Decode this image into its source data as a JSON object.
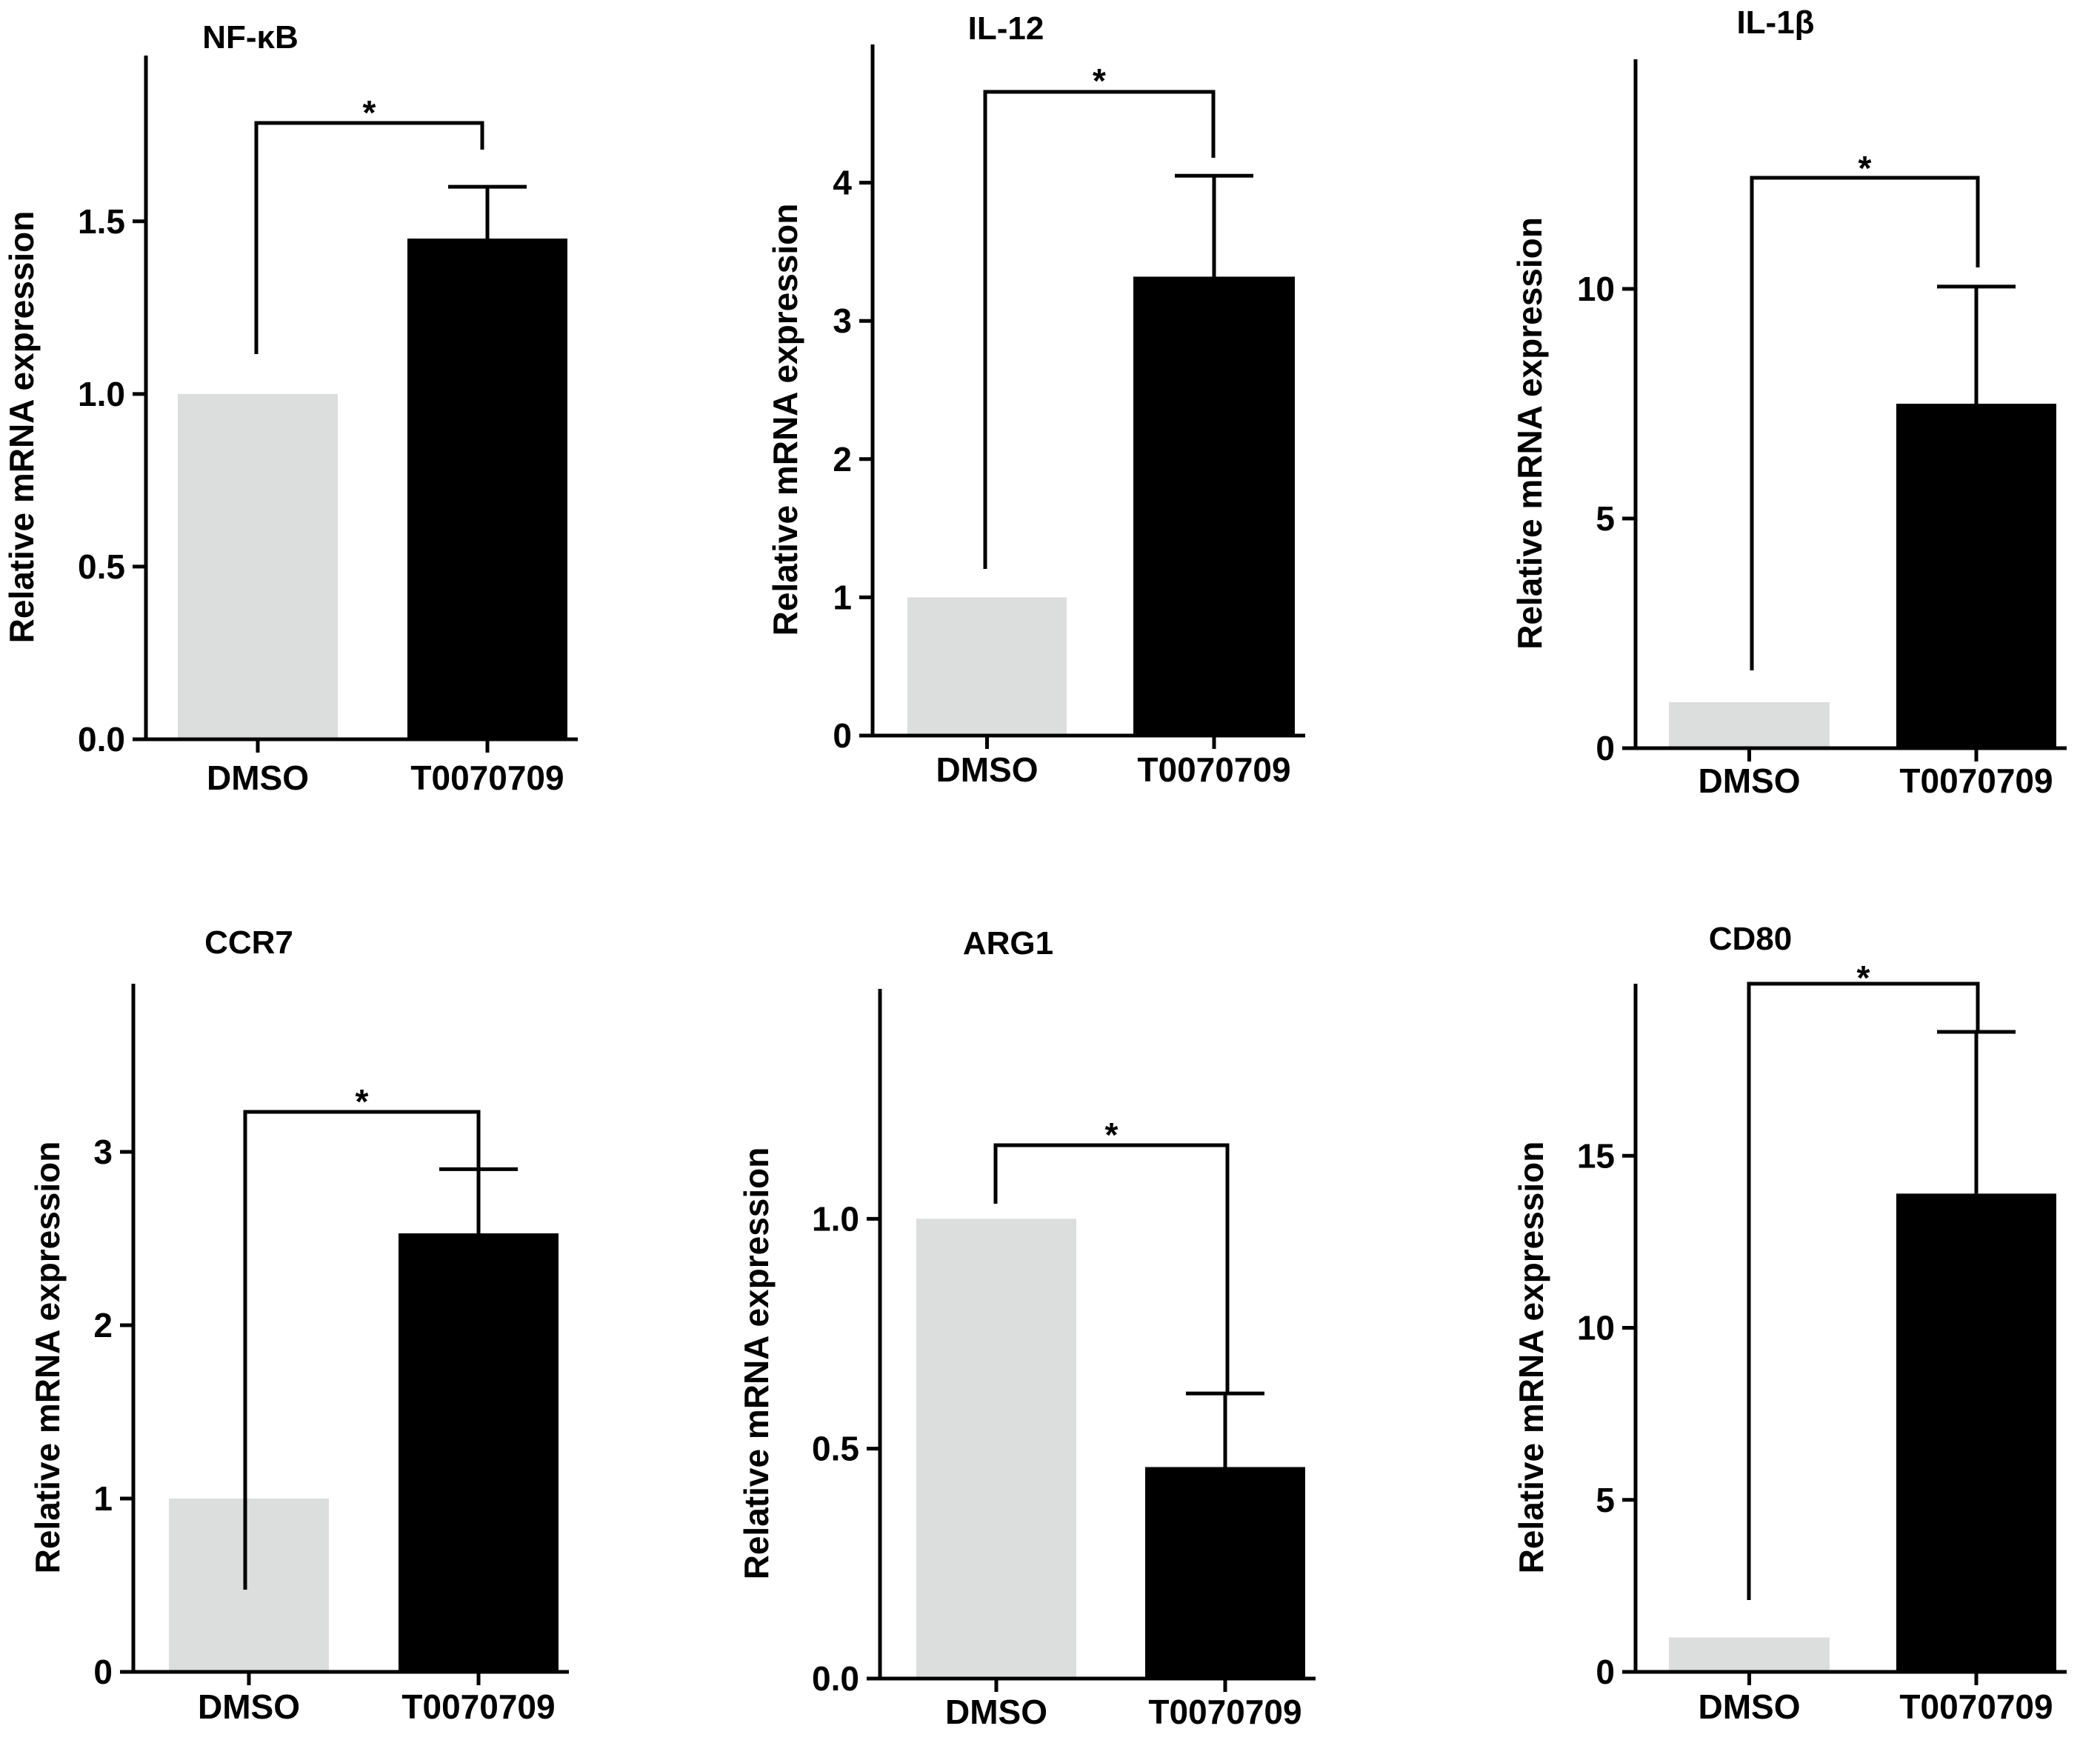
{
  "figure": {
    "background": "#ffffff",
    "colors": {
      "control": "#dcdedd",
      "treatment": "#000000",
      "axis": "#000000"
    }
  },
  "chart_data": [
    {
      "type": "bar",
      "title": "NF-κB",
      "xlabel": "",
      "ylabel": "Relative mRNA expression",
      "categories": [
        "DMSO",
        "T0070709"
      ],
      "values": [
        1.0,
        1.45
      ],
      "errors": [
        0,
        0.15
      ],
      "ylim": [
        0,
        1.98
      ],
      "yticks": [
        0,
        0.5,
        1.0,
        1.5
      ],
      "ytick_labels": [
        "0.0",
        "0.5",
        "1.0",
        "1.5"
      ],
      "significance": {
        "pair": [
          "DMSO",
          "T0070709"
        ],
        "label": "*"
      },
      "grid": false
    },
    {
      "type": "bar",
      "title": "IL-12",
      "xlabel": "",
      "ylabel": "Relative mRNA expression",
      "categories": [
        "DMSO",
        "T0070709"
      ],
      "values": [
        1.0,
        3.32
      ],
      "errors": [
        0,
        0.73
      ],
      "ylim": [
        0,
        5.0
      ],
      "yticks": [
        0,
        1,
        2,
        3,
        4
      ],
      "ytick_labels": [
        "0",
        "1",
        "2",
        "3",
        "4"
      ],
      "significance": {
        "pair": [
          "DMSO",
          "T0070709"
        ],
        "label": "*"
      },
      "grid": false
    },
    {
      "type": "bar",
      "title": "IL-1β",
      "xlabel": "",
      "ylabel": "Relative mRNA expression",
      "categories": [
        "DMSO",
        "T0070709"
      ],
      "values": [
        1.0,
        7.5
      ],
      "errors": [
        0,
        2.55
      ],
      "ylim": [
        0,
        15
      ],
      "yticks": [
        0,
        5,
        10
      ],
      "ytick_labels": [
        "0",
        "5",
        "10"
      ],
      "significance": {
        "pair": [
          "DMSO",
          "T0070709"
        ],
        "label": "*"
      },
      "grid": false
    },
    {
      "type": "bar",
      "title": "CCR7",
      "xlabel": "",
      "ylabel": "Relative mRNA expression",
      "categories": [
        "DMSO",
        "T0070709"
      ],
      "values": [
        1.0,
        2.53
      ],
      "errors": [
        0,
        0.37
      ],
      "ylim": [
        0,
        3.97
      ],
      "yticks": [
        0,
        1,
        2,
        3
      ],
      "ytick_labels": [
        "0",
        "1",
        "2",
        "3"
      ],
      "significance": {
        "pair": [
          "DMSO",
          "T0070709"
        ],
        "label": "*"
      },
      "grid": false
    },
    {
      "type": "bar",
      "title": "ARG1",
      "xlabel": "",
      "ylabel": "Relative mRNA expression",
      "categories": [
        "DMSO",
        "T0070709"
      ],
      "values": [
        1.0,
        0.46
      ],
      "errors": [
        0,
        0.16
      ],
      "ylim": [
        0,
        1.5
      ],
      "yticks": [
        0,
        0.5,
        1.0
      ],
      "ytick_labels": [
        "0.0",
        "0.5",
        "1.0"
      ],
      "significance": {
        "pair": [
          "DMSO",
          "T0070709"
        ],
        "label": "*"
      },
      "grid": false
    },
    {
      "type": "bar",
      "title": "CD80",
      "xlabel": "",
      "ylabel": "Relative mRNA expression",
      "categories": [
        "DMSO",
        "T0070709"
      ],
      "values": [
        1.0,
        13.9
      ],
      "errors": [
        0,
        4.7
      ],
      "ylim": [
        0,
        20.0
      ],
      "yticks": [
        0,
        5,
        10,
        15
      ],
      "ytick_labels": [
        "0",
        "5",
        "10",
        "15"
      ],
      "significance": {
        "pair": [
          "DMSO",
          "T0070709"
        ],
        "label": "*"
      },
      "grid": false
    }
  ]
}
